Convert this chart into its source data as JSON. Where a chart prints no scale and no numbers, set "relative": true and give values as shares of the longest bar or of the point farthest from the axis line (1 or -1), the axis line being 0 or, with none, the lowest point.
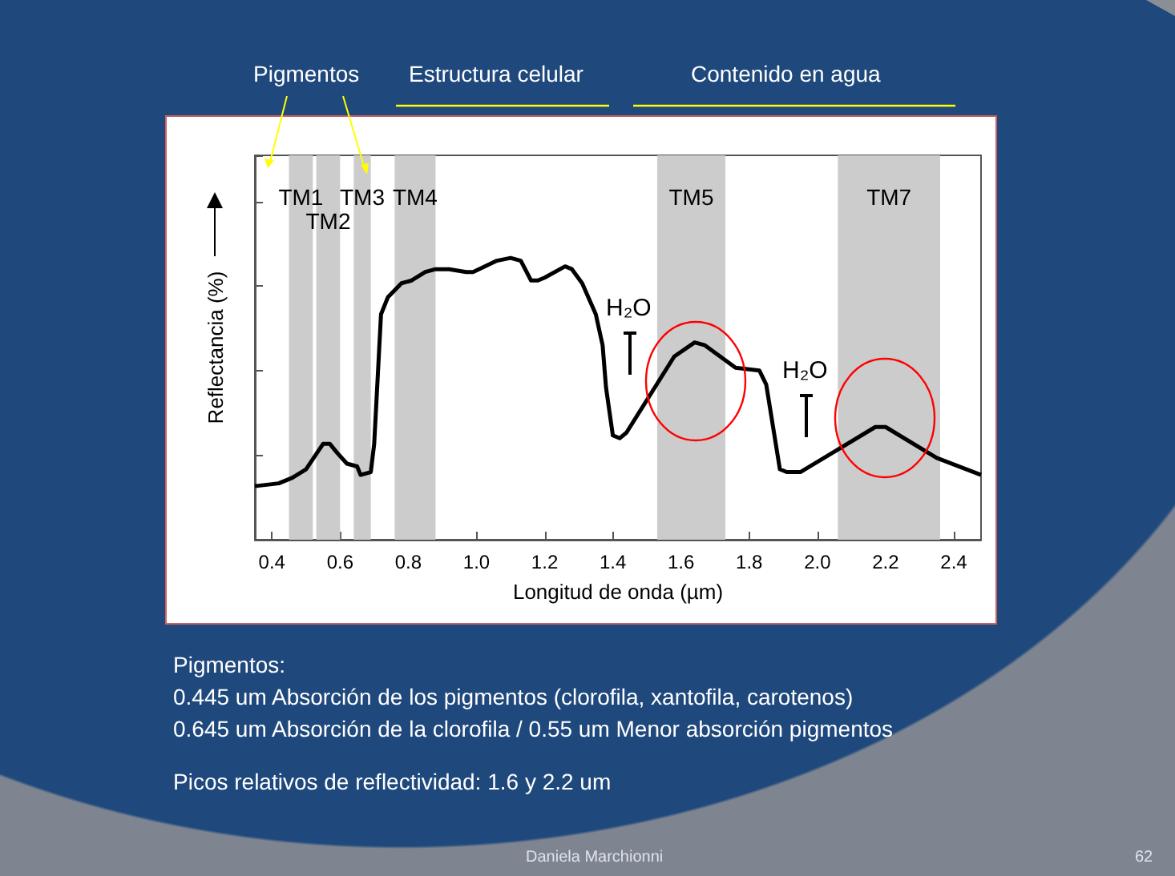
{
  "chart_data": {
    "type": "line",
    "relative": true,
    "xlabel": "Longitud de onda (µm)",
    "ylabel": "Reflectancia (%)",
    "xlim": [
      0.35,
      2.48
    ],
    "xticks": [
      0.4,
      0.6,
      0.8,
      {
        "value": 1.0,
        "label": "1.0"
      },
      1.2,
      1.4,
      1.6,
      1.8,
      {
        "value": 2.0,
        "label": "2.0"
      },
      2.2,
      2.4
    ],
    "grid": false,
    "marker": "none",
    "line_style": "solid",
    "series": [
      {
        "color": "#000000",
        "x": [
          0.35,
          0.42,
          0.46,
          0.5,
          0.55,
          0.57,
          0.59,
          0.62,
          0.65,
          0.66,
          0.69,
          0.7,
          0.72,
          0.74,
          0.78,
          0.81,
          0.85,
          0.88,
          0.92,
          0.97,
          0.99,
          1.06,
          1.1,
          1.13,
          1.16,
          1.18,
          1.2,
          1.26,
          1.28,
          1.31,
          1.35,
          1.37,
          1.38,
          1.4,
          1.42,
          1.44,
          1.58,
          1.64,
          1.67,
          1.76,
          1.83,
          1.85,
          1.89,
          1.91,
          1.95,
          2.17,
          2.2,
          2.35,
          2.48
        ],
        "values": [
          0.19,
          0.2,
          0.22,
          0.25,
          0.34,
          0.34,
          0.31,
          0.27,
          0.26,
          0.23,
          0.24,
          0.34,
          0.8,
          0.86,
          0.91,
          0.92,
          0.95,
          0.96,
          0.96,
          0.95,
          0.95,
          0.99,
          1.0,
          0.99,
          0.92,
          0.92,
          0.93,
          0.97,
          0.96,
          0.91,
          0.8,
          0.69,
          0.54,
          0.37,
          0.36,
          0.38,
          0.65,
          0.7,
          0.69,
          0.61,
          0.6,
          0.55,
          0.25,
          0.24,
          0.24,
          0.4,
          0.4,
          0.29,
          0.23
        ]
      }
    ],
    "bands": [
      {
        "axis": "x",
        "from": 0.45,
        "to": 0.52,
        "label": "TM1",
        "color": "#cccccc"
      },
      {
        "axis": "x",
        "from": 0.53,
        "to": 0.6,
        "label": "TM2",
        "color": "#cccccc"
      },
      {
        "axis": "x",
        "from": 0.64,
        "to": 0.69,
        "label": "TM3",
        "color": "#cccccc"
      },
      {
        "axis": "x",
        "from": 0.76,
        "to": 0.88,
        "label": "TM4",
        "color": "#cccccc"
      },
      {
        "axis": "x",
        "from": 1.53,
        "to": 1.73,
        "label": "TM5",
        "color": "#cccccc"
      },
      {
        "axis": "x",
        "from": 2.06,
        "to": 2.36,
        "label": "TM7",
        "color": "#cccccc"
      }
    ],
    "annotations": [
      "Pigmentos",
      "Estructura celular",
      "Contenido en agua",
      "Pigmentos:",
      "0.445 um Absorción de los pigmentos (clorofila, xantofila, carotenos)",
      "0.645 um Absorción de la clorofila / 0.55 um Menor absorción pigmentos",
      "Picos relativos de reflectividad: 1.6 y 2.2 um",
      "Daniela Marchionni",
      "62",
      "H₂O",
      "H₂O"
    ]
  }
}
